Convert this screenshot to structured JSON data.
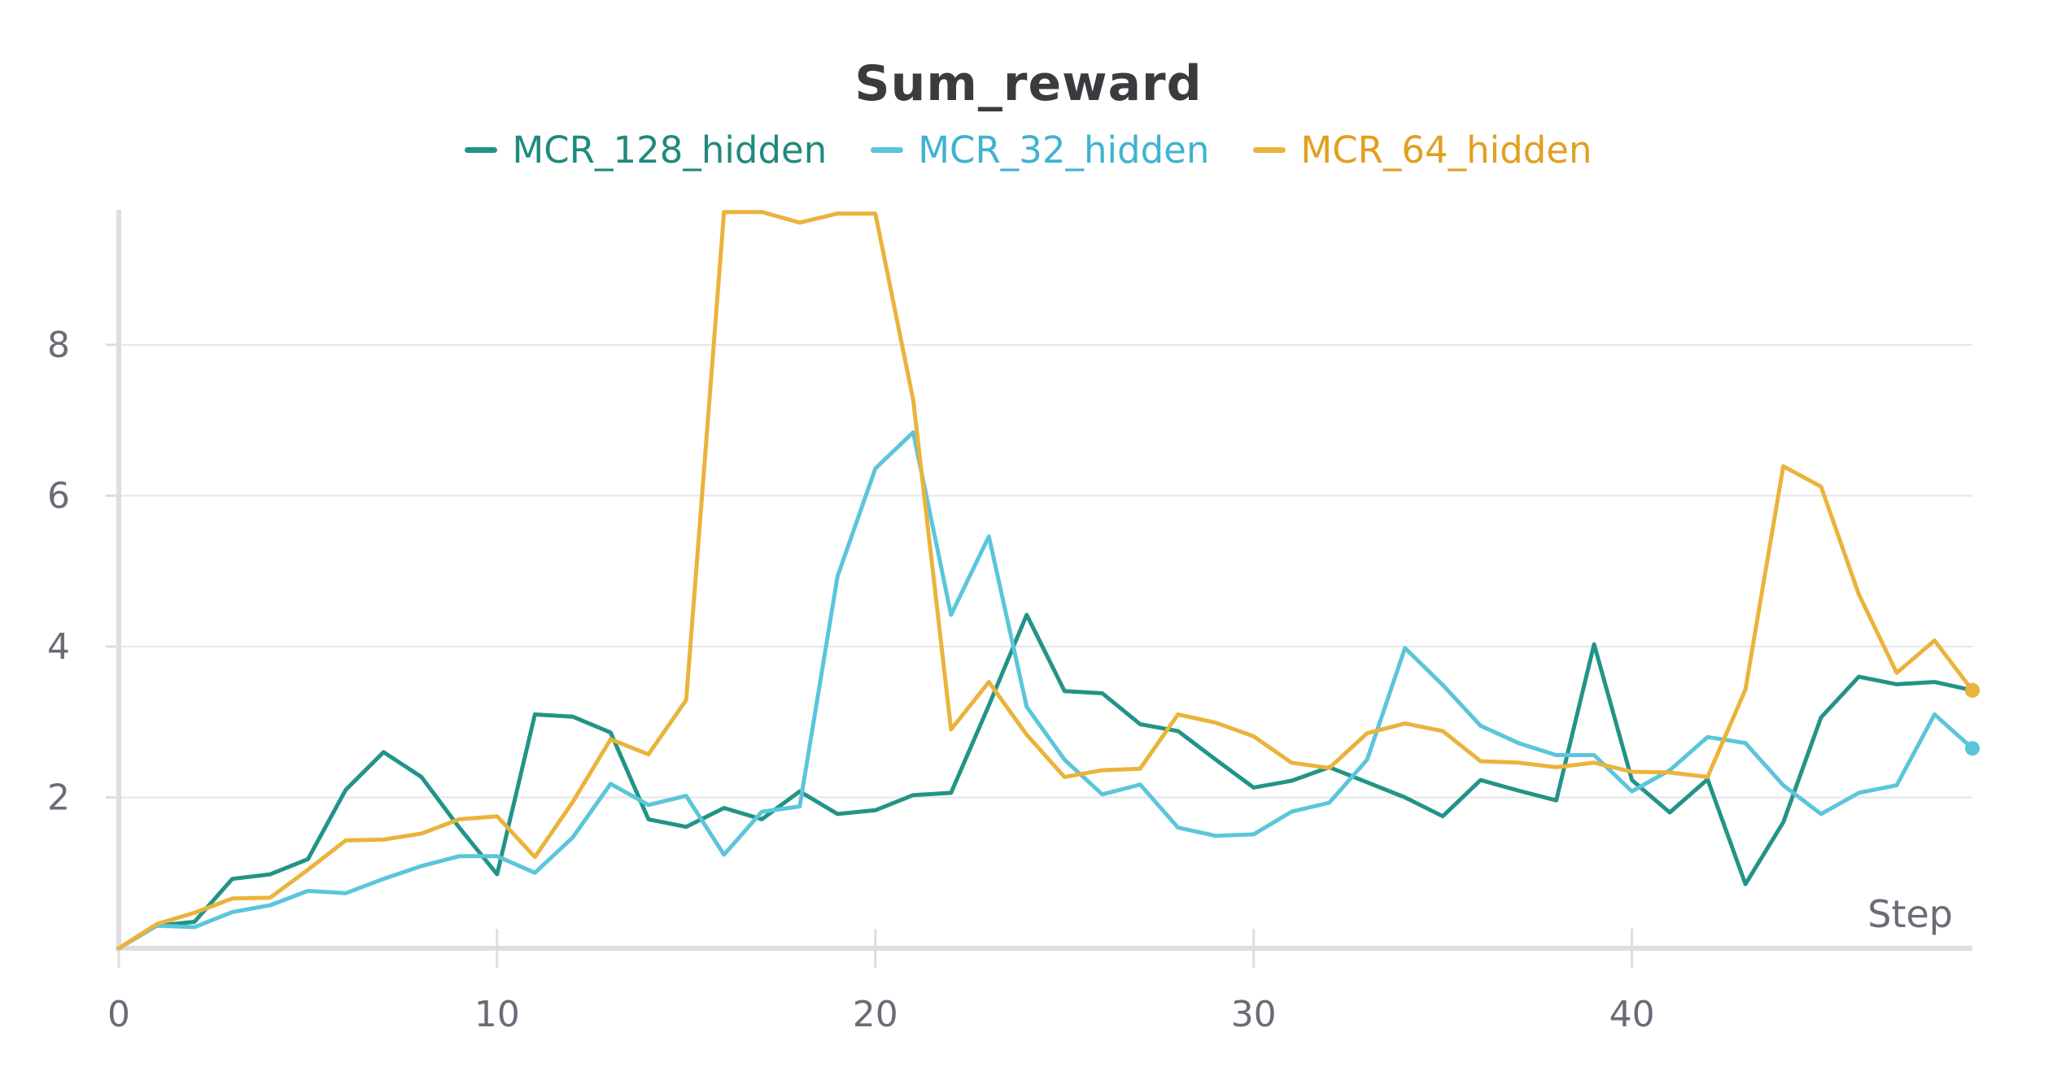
{
  "chart_data": {
    "type": "line",
    "title": "Sum_reward",
    "xlabel": "Step",
    "ylabel": "",
    "xlim": [
      0,
      49
    ],
    "ylim": [
      0,
      9.8
    ],
    "xticks": [
      0,
      10,
      20,
      30,
      40
    ],
    "yticks": [
      2,
      4,
      6,
      8
    ],
    "grid": true,
    "legend_position": "top-center",
    "x": [
      0,
      1,
      2,
      3,
      4,
      5,
      6,
      7,
      8,
      9,
      10,
      11,
      12,
      13,
      14,
      15,
      16,
      17,
      18,
      19,
      20,
      21,
      22,
      23,
      24,
      25,
      26,
      27,
      28,
      29,
      30,
      31,
      32,
      33,
      34,
      35,
      36,
      37,
      38,
      39,
      40,
      41,
      42,
      43,
      44,
      45,
      46,
      47,
      48,
      49
    ],
    "series": [
      {
        "name": "MCR_128_hidden",
        "color": "#229487",
        "values": [
          0.0,
          0.3,
          0.35,
          0.92,
          0.98,
          1.18,
          2.1,
          2.6,
          2.27,
          1.6,
          0.98,
          3.1,
          3.07,
          2.86,
          1.71,
          1.61,
          1.86,
          1.71,
          2.08,
          1.78,
          1.83,
          2.03,
          2.06,
          3.22,
          4.42,
          3.41,
          3.38,
          2.97,
          2.88,
          2.5,
          2.13,
          2.22,
          2.4,
          2.2,
          2.0,
          1.75,
          2.23,
          2.09,
          1.96,
          4.03,
          2.23,
          1.8,
          2.24,
          0.85,
          1.67,
          3.06,
          3.6,
          3.5,
          3.53,
          3.42
        ]
      },
      {
        "name": "MCR_32_hidden",
        "color": "#5bc5db",
        "values": [
          0.0,
          0.3,
          0.28,
          0.48,
          0.57,
          0.76,
          0.73,
          0.92,
          1.09,
          1.22,
          1.22,
          1.0,
          1.47,
          2.18,
          1.9,
          2.02,
          1.24,
          1.81,
          1.88,
          4.93,
          6.36,
          6.84,
          4.42,
          5.46,
          3.2,
          2.5,
          2.04,
          2.17,
          1.6,
          1.49,
          1.51,
          1.81,
          1.93,
          2.5,
          3.98,
          3.49,
          2.95,
          2.72,
          2.56,
          2.56,
          2.08,
          2.36,
          2.8,
          2.72,
          2.16,
          1.78,
          2.06,
          2.16,
          3.1,
          2.65
        ]
      },
      {
        "name": "MCR_64_hidden",
        "color": "#eab33b",
        "values": [
          0.0,
          0.32,
          0.47,
          0.66,
          0.67,
          1.04,
          1.43,
          1.44,
          1.52,
          1.71,
          1.75,
          1.21,
          1.94,
          2.77,
          2.57,
          3.29,
          9.76,
          9.76,
          9.62,
          9.74,
          9.74,
          7.27,
          2.9,
          3.53,
          2.83,
          2.27,
          2.36,
          2.38,
          3.1,
          2.99,
          2.81,
          2.46,
          2.39,
          2.85,
          2.98,
          2.88,
          2.48,
          2.46,
          2.4,
          2.46,
          2.34,
          2.33,
          2.27,
          3.43,
          6.39,
          6.12,
          4.69,
          3.65,
          4.08,
          3.42
        ]
      }
    ]
  }
}
